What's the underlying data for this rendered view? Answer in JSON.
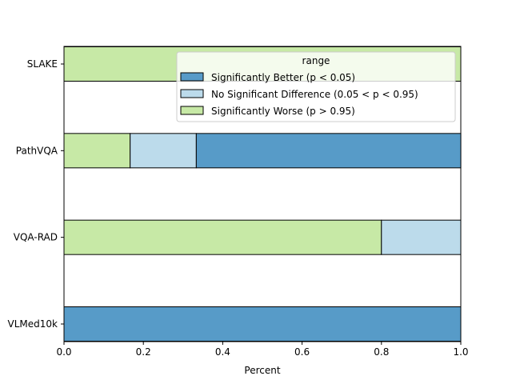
{
  "chart_data": {
    "type": "bar",
    "orientation": "horizontal",
    "stacked": true,
    "categories": [
      "SLAKE",
      "PathVQA",
      "VQA-RAD",
      "VLMed10k"
    ],
    "series": [
      {
        "name": "Significantly Worse (p > 0.95)",
        "color": "#c7e9a6",
        "values": [
          1.0,
          0.1667,
          0.8,
          0.0
        ]
      },
      {
        "name": "No Significant Difference (0.05 < p < 0.95)",
        "color": "#bcdbeb",
        "values": [
          0.0,
          0.1667,
          0.2,
          0.0
        ]
      },
      {
        "name": "Significantly Better (p < 0.05)",
        "color": "#579bc8",
        "values": [
          0.0,
          0.6667,
          0.0,
          1.0
        ]
      }
    ],
    "legend_order": [
      "Significantly Better (p < 0.05)",
      "No Significant Difference (0.05 < p < 0.95)",
      "Significantly Worse (p > 0.95)"
    ],
    "legend_title": "range",
    "legend_position": "top-right",
    "xlabel": "Percent",
    "ylabel": "",
    "xlim": [
      0,
      1
    ],
    "xticks": [
      "0.0",
      "0.2",
      "0.4",
      "0.6",
      "0.8",
      "1.0"
    ],
    "xtick_values": [
      0,
      0.2,
      0.4,
      0.6,
      0.8,
      1.0
    ],
    "grid": false
  }
}
